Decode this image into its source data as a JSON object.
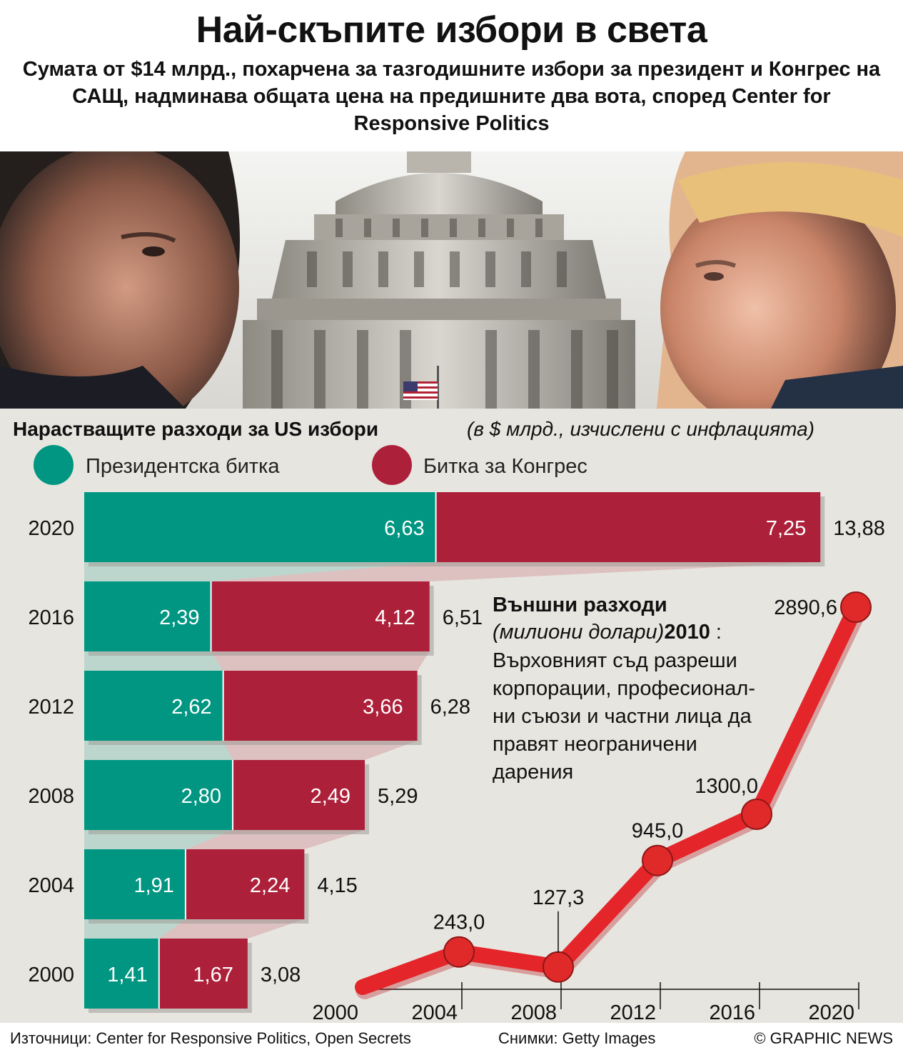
{
  "header": {
    "title": "Най-скъпите избори в света",
    "subtitle": "Сумата от $14 млрд., похарчена за тазгодишните избори за президент и Конгрес на САЩ, надминава общата цена на предишните два вота, според Center for Responsive Politics"
  },
  "colors": {
    "presidential": "#009681",
    "congress": "#ad203a",
    "line": "#e4252a",
    "background": "#e7e5df"
  },
  "chart_data": [
    {
      "type": "bar",
      "orientation": "horizontal",
      "stacked": true,
      "title": "Нарастващите разходи за US избори",
      "unit_note": "(в $ млрд., изчислени с инфлацията)",
      "legend_placement": "top",
      "categories": [
        "2020",
        "2016",
        "2012",
        "2008",
        "2004",
        "2000"
      ],
      "series": [
        {
          "name": "Президентска битка",
          "values": [
            6.63,
            2.39,
            2.62,
            2.8,
            1.91,
            1.41
          ],
          "labels": [
            "6,63",
            "2,39",
            "2,62",
            "2,80",
            "1,91",
            "1,41"
          ]
        },
        {
          "name": "Битка за Конгрес",
          "values": [
            7.25,
            4.12,
            3.66,
            2.49,
            2.24,
            1.67
          ],
          "labels": [
            "7,25",
            "4,12",
            "3,66",
            "2,49",
            "2,24",
            "1,67"
          ]
        }
      ],
      "totals": [
        "13,88",
        "6,51",
        "6,28",
        "5,29",
        "4,15",
        "3,08"
      ]
    },
    {
      "type": "line",
      "title": "Външни разходи",
      "unit_note": "(милиони долари)",
      "annotation_year": "2010",
      "annotation_text": "Върховният съд разреши корпорации, професионал-ни съюзи и частни лица да правят неограничени дарения",
      "x_ticks": [
        "2000",
        "2004",
        "2008",
        "2012",
        "2016",
        "2020"
      ],
      "x": [
        2000,
        2004,
        2008,
        2012,
        2016,
        2020
      ],
      "values": [
        null,
        243.0,
        127.3,
        945.0,
        1300.0,
        2890.6
      ],
      "labels": [
        "",
        "243,0",
        "127,3",
        "945,0",
        "1300,0",
        "2890,6"
      ],
      "x_range": [
        2000,
        2020
      ]
    }
  ],
  "footer": {
    "sources": "Източници: Center for Responsive Politics, Open Secrets",
    "photo_credit": "Снимки: Getty Images",
    "copyright": "© GRAPHIC NEWS"
  }
}
